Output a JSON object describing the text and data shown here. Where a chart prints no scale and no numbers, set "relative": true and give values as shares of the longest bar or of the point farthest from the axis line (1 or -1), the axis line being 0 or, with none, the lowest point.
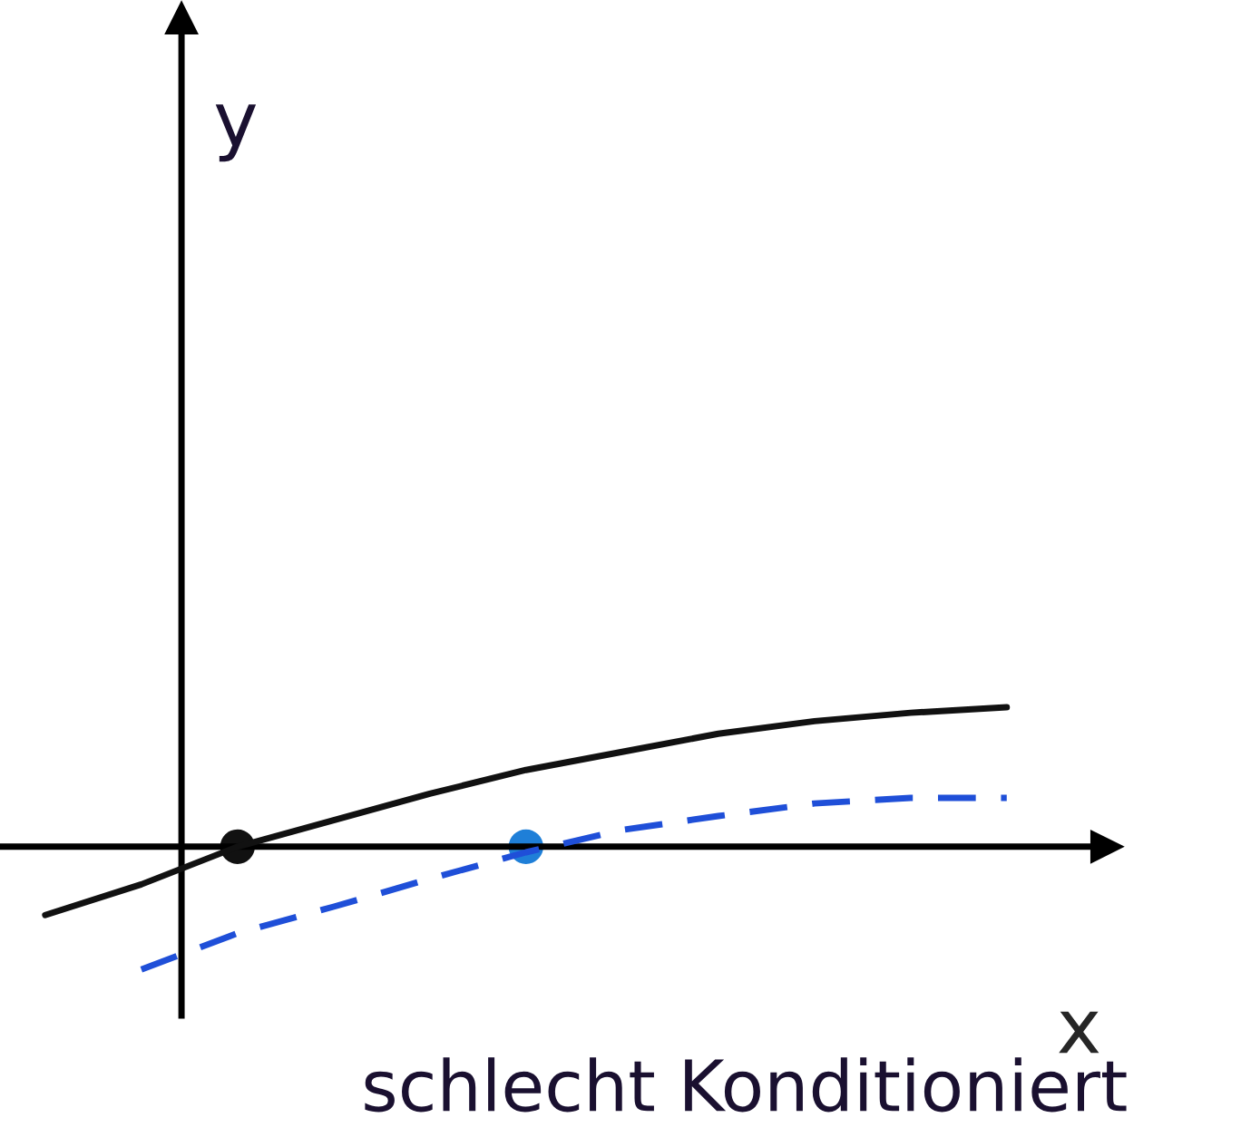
{
  "chart_data": {
    "type": "line",
    "relative": true,
    "xlabel": "x",
    "categories": [
      null,
      null,
      null,
      null,
      null,
      null,
      null,
      null,
      null,
      null,
      null
    ],
    "series": [
      {
        "color": "#111111",
        "line_style": "solid",
        "values": [
          -0.49,
          -0.27,
          0,
          0.19,
          0.38,
          0.55,
          0.68,
          0.81,
          0.9,
          0.96,
          1
        ]
      },
      {
        "color": "#1f4fd8",
        "line_style": "dashed",
        "values": [
          null,
          -0.88,
          -0.62,
          -0.43,
          -0.23,
          -0.04,
          0.12,
          0.22,
          0.31,
          0.35,
          0.35
        ]
      },
      {
        "color": "#111111",
        "marker": "circle",
        "values": [
          null,
          null,
          0,
          null,
          null,
          null,
          null,
          null,
          null,
          null,
          null
        ]
      },
      {
        "color": "#1f7fd8",
        "marker": "circle",
        "values": [
          null,
          null,
          null,
          null,
          null,
          0,
          null,
          null,
          null,
          null,
          null
        ]
      }
    ],
    "annotations": [
      "y",
      "schlecht Konditioniert"
    ]
  }
}
